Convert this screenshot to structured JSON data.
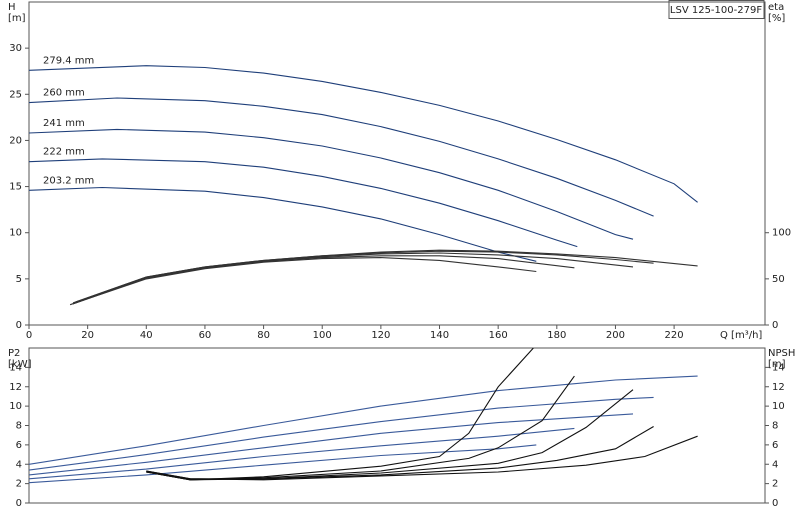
{
  "chart_data": [
    {
      "type": "line",
      "title": "LSV 125-100-279F",
      "ylabel": "H",
      "yunit": "[m]",
      "y2label": "eta",
      "y2unit": "[%]",
      "xlabel": "Q [m³/h]",
      "xlim": [
        0,
        251
      ],
      "xticks": [
        0,
        20,
        40,
        60,
        80,
        100,
        120,
        140,
        160,
        180,
        200,
        220
      ],
      "ylim": [
        0,
        35
      ],
      "yticks": [
        0,
        5,
        10,
        15,
        20,
        25,
        30
      ],
      "y2lim": [
        0,
        350
      ],
      "y2ticks": [
        0,
        50,
        100
      ],
      "series": [
        {
          "name": "279.4 mm",
          "color": "#1f3f7a",
          "x": [
            0,
            40,
            60,
            80,
            100,
            120,
            140,
            160,
            180,
            200,
            220,
            228
          ],
          "values": [
            27.6,
            28.1,
            27.9,
            27.3,
            26.4,
            25.2,
            23.8,
            22.1,
            20.1,
            17.9,
            15.3,
            13.3
          ]
        },
        {
          "name": "260 mm",
          "color": "#1f3f7a",
          "x": [
            0,
            30,
            60,
            80,
            100,
            120,
            140,
            160,
            180,
            200,
            213
          ],
          "values": [
            24.1,
            24.6,
            24.3,
            23.7,
            22.8,
            21.5,
            19.9,
            18.0,
            15.9,
            13.5,
            11.8
          ]
        },
        {
          "name": "241 mm",
          "color": "#1f3f7a",
          "x": [
            0,
            30,
            60,
            80,
            100,
            120,
            140,
            160,
            180,
            200,
            206
          ],
          "values": [
            20.8,
            21.2,
            20.9,
            20.3,
            19.4,
            18.1,
            16.5,
            14.6,
            12.3,
            9.8,
            9.3
          ]
        },
        {
          "name": "222 mm",
          "color": "#1f3f7a",
          "x": [
            0,
            25,
            60,
            80,
            100,
            120,
            140,
            160,
            180,
            187
          ],
          "values": [
            17.7,
            18.0,
            17.7,
            17.1,
            16.1,
            14.8,
            13.2,
            11.3,
            9.2,
            8.5
          ]
        },
        {
          "name": "203.2 mm",
          "color": "#1f3f7a",
          "x": [
            0,
            25,
            60,
            80,
            100,
            120,
            140,
            160,
            173
          ],
          "values": [
            14.6,
            14.9,
            14.5,
            13.8,
            12.8,
            11.5,
            9.8,
            7.9,
            6.9
          ]
        },
        {
          "color": "#333333",
          "axis": "y2",
          "x": [
            16,
            40,
            60,
            80,
            100,
            120,
            140,
            160,
            180,
            200,
            228
          ],
          "values": [
            25,
            52,
            63,
            70,
            75,
            79,
            81,
            80,
            77,
            73,
            64
          ]
        },
        {
          "color": "#333333",
          "axis": "y2",
          "x": [
            15,
            40,
            60,
            80,
            100,
            120,
            140,
            160,
            180,
            200,
            213
          ],
          "values": [
            24,
            52,
            63,
            70,
            75,
            78,
            80,
            79,
            76,
            71,
            67
          ]
        },
        {
          "color": "#333333",
          "axis": "y2",
          "x": [
            15,
            40,
            60,
            80,
            100,
            120,
            140,
            160,
            180,
            206
          ],
          "values": [
            23,
            51,
            62,
            69,
            74,
            77,
            78,
            76,
            72,
            63
          ]
        },
        {
          "color": "#333333",
          "axis": "y2",
          "x": [
            15,
            40,
            60,
            80,
            100,
            120,
            140,
            160,
            186
          ],
          "values": [
            23,
            51,
            62,
            69,
            73,
            75,
            75,
            72,
            62
          ]
        },
        {
          "color": "#333333",
          "axis": "y2",
          "x": [
            14,
            40,
            60,
            80,
            100,
            120,
            140,
            160,
            173
          ],
          "values": [
            22,
            50,
            61,
            68,
            72,
            73,
            70,
            63,
            58
          ]
        }
      ]
    },
    {
      "type": "line",
      "ylabel": "P2",
      "yunit": "[kW]",
      "y2label": "NPSH",
      "y2unit": "[m]",
      "xlim": [
        0,
        251
      ],
      "ylim": [
        0,
        16
      ],
      "yticks": [
        0,
        2,
        4,
        6,
        8,
        10,
        12,
        14
      ],
      "y2lim": [
        0,
        16
      ],
      "y2ticks": [
        0,
        2,
        4,
        6,
        8,
        10,
        12,
        14
      ],
      "series": [
        {
          "color": "#3a5a9a",
          "x": [
            0,
            40,
            80,
            120,
            160,
            200,
            228
          ],
          "values": [
            4.0,
            5.9,
            8.0,
            10.0,
            11.6,
            12.7,
            13.1
          ]
        },
        {
          "color": "#3a5a9a",
          "x": [
            0,
            40,
            80,
            120,
            160,
            200,
            213
          ],
          "values": [
            3.4,
            5.0,
            6.8,
            8.4,
            9.8,
            10.7,
            10.9
          ]
        },
        {
          "color": "#3a5a9a",
          "x": [
            0,
            40,
            80,
            120,
            160,
            206
          ],
          "values": [
            2.9,
            4.2,
            5.7,
            7.2,
            8.3,
            9.2
          ]
        },
        {
          "color": "#3a5a9a",
          "x": [
            0,
            40,
            80,
            120,
            160,
            186
          ],
          "values": [
            2.5,
            3.5,
            4.8,
            5.9,
            6.9,
            7.7
          ]
        },
        {
          "color": "#3a5a9a",
          "x": [
            0,
            40,
            80,
            120,
            160,
            173
          ],
          "values": [
            2.1,
            2.9,
            3.9,
            4.9,
            5.6,
            6.0
          ]
        },
        {
          "color": "#111111",
          "axis": "y2",
          "x": [
            40,
            55,
            80,
            120,
            160,
            190,
            210,
            228
          ],
          "values": [
            3.3,
            2.5,
            2.4,
            2.8,
            3.2,
            3.9,
            4.8,
            6.9
          ]
        },
        {
          "color": "#111111",
          "axis": "y2",
          "x": [
            40,
            55,
            80,
            120,
            160,
            180,
            200,
            213
          ],
          "values": [
            3.3,
            2.5,
            2.5,
            2.9,
            3.6,
            4.4,
            5.6,
            7.9
          ]
        },
        {
          "color": "#111111",
          "axis": "y2",
          "x": [
            40,
            55,
            80,
            120,
            160,
            175,
            190,
            206
          ],
          "values": [
            3.2,
            2.4,
            2.5,
            3.1,
            4.1,
            5.2,
            7.8,
            11.7
          ]
        },
        {
          "color": "#111111",
          "axis": "y2",
          "x": [
            40,
            55,
            80,
            120,
            150,
            160,
            175,
            186
          ],
          "values": [
            3.2,
            2.4,
            2.6,
            3.3,
            4.6,
            5.7,
            8.5,
            13.1
          ]
        },
        {
          "color": "#111111",
          "axis": "y2",
          "x": [
            40,
            55,
            80,
            120,
            140,
            150,
            160,
            172
          ],
          "values": [
            3.2,
            2.4,
            2.7,
            3.8,
            4.8,
            7.2,
            12.0,
            16.0
          ]
        }
      ]
    }
  ]
}
